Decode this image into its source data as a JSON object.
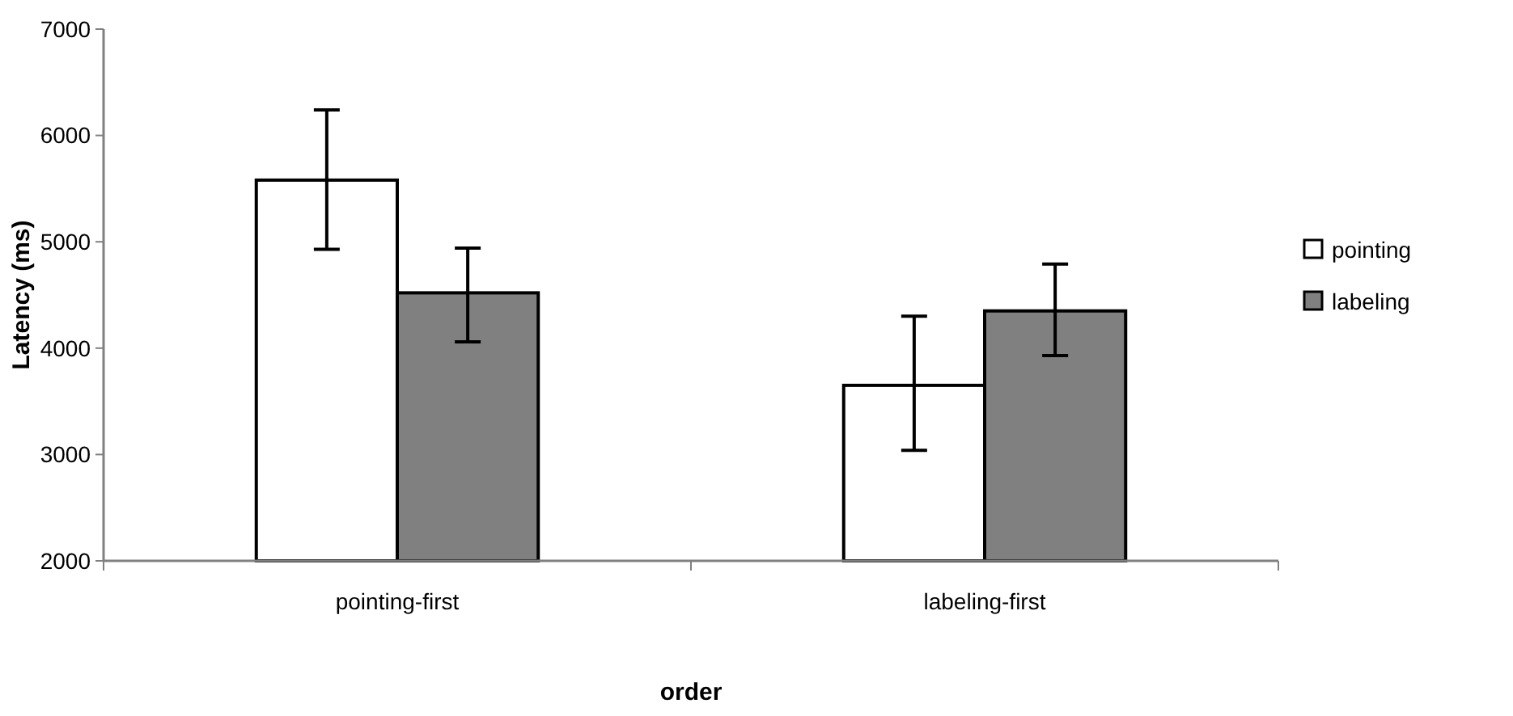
{
  "chart_data": {
    "type": "bar",
    "xlabel": "order",
    "ylabel": "Latency (ms)",
    "categories": [
      "pointing-first",
      "labeling-first"
    ],
    "series": [
      {
        "name": "pointing",
        "color": "#ffffff",
        "values": [
          5580,
          3650
        ],
        "errors": [
          [
            4930,
            6240
          ],
          [
            3040,
            4300
          ]
        ]
      },
      {
        "name": "labeling",
        "color": "#808080",
        "values": [
          4520,
          4350
        ],
        "errors": [
          [
            4060,
            4940
          ],
          [
            3930,
            4790
          ]
        ]
      }
    ],
    "ylim": [
      2000,
      7000
    ],
    "yticks": [
      2000,
      3000,
      4000,
      5000,
      6000,
      7000
    ],
    "grid": false,
    "legend": "right"
  }
}
